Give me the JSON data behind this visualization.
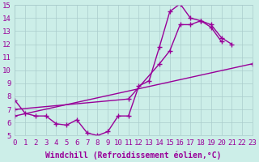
{
  "xlabel": "Windchill (Refroidissement éolien,°C)",
  "bg_color": "#cceee8",
  "grid_color": "#aacccc",
  "line_color": "#990099",
  "xmin": 0,
  "xmax": 23,
  "ymin": 5,
  "ymax": 15,
  "series": [
    {
      "x": [
        0,
        1,
        2,
        3,
        4,
        5,
        6,
        7,
        8,
        9,
        10,
        11,
        12,
        13,
        14,
        15,
        16,
        17,
        18,
        19,
        20
      ],
      "y": [
        7.7,
        6.7,
        6.5,
        6.5,
        5.9,
        5.8,
        6.2,
        5.2,
        5.0,
        5.3,
        6.5,
        6.5,
        8.8,
        9.2,
        11.8,
        14.5,
        15.1,
        14.0,
        13.8,
        13.3,
        12.2
      ]
    },
    {
      "x": [
        0,
        11,
        14,
        15,
        16,
        17,
        18,
        19,
        20,
        21
      ],
      "y": [
        7.0,
        7.8,
        10.5,
        11.5,
        13.5,
        13.5,
        13.8,
        13.5,
        12.5,
        12.0
      ]
    },
    {
      "x": [
        0,
        23
      ],
      "y": [
        6.5,
        10.5
      ]
    }
  ],
  "font_size_tick": 6.5,
  "font_size_xlabel": 7.0
}
